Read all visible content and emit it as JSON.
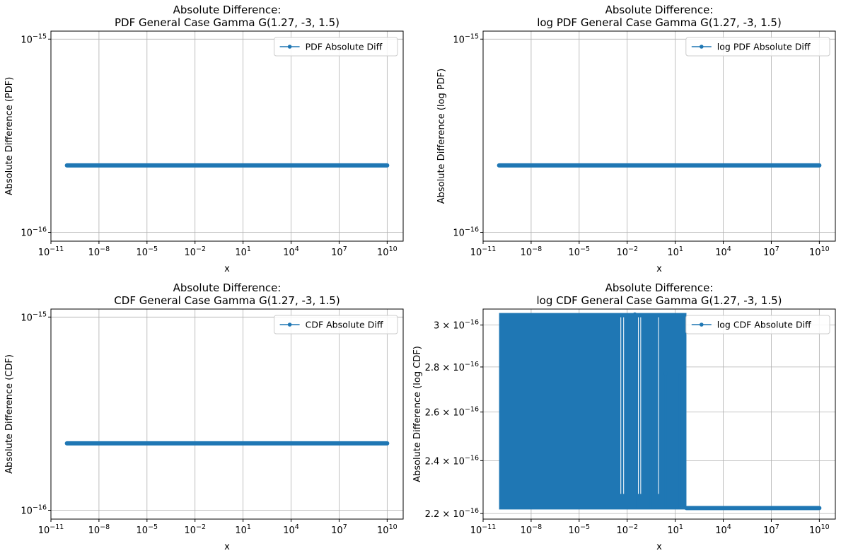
{
  "chart_data": [
    {
      "type": "line",
      "title_line1": "Absolute Difference:",
      "title_line2": "PDF General Case Gamma G(1.27, -3, 1.5)",
      "xlabel": "x",
      "ylabel": "Absolute Difference (PDF)",
      "x_scale": "log",
      "y_scale": "log",
      "xlim": [
        1e-11,
        100000000000.0
      ],
      "ylim": [
        9e-17,
        1.1e-15
      ],
      "x_ticks": [
        {
          "base": "10",
          "exp": "−11",
          "value": 1e-11
        },
        {
          "base": "10",
          "exp": "−8",
          "value": 1e-08
        },
        {
          "base": "10",
          "exp": "−5",
          "value": 1e-05
        },
        {
          "base": "10",
          "exp": "−2",
          "value": 0.01
        },
        {
          "base": "10",
          "exp": "1",
          "value": 10.0
        },
        {
          "base": "10",
          "exp": "4",
          "value": 10000.0
        },
        {
          "base": "10",
          "exp": "7",
          "value": 10000000.0
        },
        {
          "base": "10",
          "exp": "10",
          "value": 10000000000.0
        }
      ],
      "y_ticks": [
        {
          "base": "10",
          "exp": "−15",
          "value": 1e-15
        },
        {
          "base": "10",
          "exp": "−16",
          "value": 1e-16
        }
      ],
      "grid": true,
      "legend_position": "upper right",
      "series": [
        {
          "name": "PDF Absolute Diff",
          "color": "#1f77b4",
          "marker": "dot",
          "x_range": [
            1e-10,
            10000000000.0
          ],
          "constant_y": 2.22e-16
        }
      ]
    },
    {
      "type": "line",
      "title_line1": "Absolute Difference:",
      "title_line2": "log PDF General Case Gamma G(1.27, -3, 1.5)",
      "xlabel": "x",
      "ylabel": "Absolute Difference (log PDF)",
      "x_scale": "log",
      "y_scale": "log",
      "xlim": [
        1e-11,
        100000000000.0
      ],
      "ylim": [
        9e-17,
        1.1e-15
      ],
      "x_ticks": [
        {
          "base": "10",
          "exp": "−11",
          "value": 1e-11
        },
        {
          "base": "10",
          "exp": "−8",
          "value": 1e-08
        },
        {
          "base": "10",
          "exp": "−5",
          "value": 1e-05
        },
        {
          "base": "10",
          "exp": "−2",
          "value": 0.01
        },
        {
          "base": "10",
          "exp": "1",
          "value": 10.0
        },
        {
          "base": "10",
          "exp": "4",
          "value": 10000.0
        },
        {
          "base": "10",
          "exp": "7",
          "value": 10000000.0
        },
        {
          "base": "10",
          "exp": "10",
          "value": 10000000000.0
        }
      ],
      "y_ticks": [
        {
          "base": "10",
          "exp": "−15",
          "value": 1e-15
        },
        {
          "base": "10",
          "exp": "−16",
          "value": 1e-16
        }
      ],
      "grid": true,
      "legend_position": "upper right",
      "series": [
        {
          "name": "log PDF Absolute Diff",
          "color": "#1f77b4",
          "marker": "dot",
          "x_range": [
            1e-10,
            10000000000.0
          ],
          "constant_y": 2.22e-16
        }
      ]
    },
    {
      "type": "line",
      "title_line1": "Absolute Difference:",
      "title_line2": "CDF General Case Gamma G(1.27, -3, 1.5)",
      "xlabel": "x",
      "ylabel": "Absolute Difference (CDF)",
      "x_scale": "log",
      "y_scale": "log",
      "xlim": [
        1e-11,
        100000000000.0
      ],
      "ylim": [
        9e-17,
        1.1e-15
      ],
      "x_ticks": [
        {
          "base": "10",
          "exp": "−11",
          "value": 1e-11
        },
        {
          "base": "10",
          "exp": "−8",
          "value": 1e-08
        },
        {
          "base": "10",
          "exp": "−5",
          "value": 1e-05
        },
        {
          "base": "10",
          "exp": "−2",
          "value": 0.01
        },
        {
          "base": "10",
          "exp": "1",
          "value": 10.0
        },
        {
          "base": "10",
          "exp": "4",
          "value": 10000.0
        },
        {
          "base": "10",
          "exp": "7",
          "value": 10000000.0
        },
        {
          "base": "10",
          "exp": "10",
          "value": 10000000000.0
        }
      ],
      "y_ticks": [
        {
          "base": "10",
          "exp": "−15",
          "value": 1e-15
        },
        {
          "base": "10",
          "exp": "−16",
          "value": 1e-16
        }
      ],
      "grid": true,
      "legend_position": "upper right",
      "series": [
        {
          "name": "CDF Absolute Diff",
          "color": "#1f77b4",
          "marker": "dot",
          "x_range": [
            1e-10,
            10000000000.0
          ],
          "constant_y": 2.22e-16
        }
      ]
    },
    {
      "type": "line",
      "title_line1": "Absolute Difference:",
      "title_line2": "log CDF General Case Gamma G(1.27, -3, 1.5)",
      "xlabel": "x",
      "ylabel": "Absolute Difference (log CDF)",
      "x_scale": "log",
      "y_scale": "log",
      "xlim": [
        1e-11,
        100000000000.0
      ],
      "ylim": [
        2.18e-16,
        3.08e-16
      ],
      "x_ticks": [
        {
          "base": "10",
          "exp": "−11",
          "value": 1e-11
        },
        {
          "base": "10",
          "exp": "−8",
          "value": 1e-08
        },
        {
          "base": "10",
          "exp": "−5",
          "value": 1e-05
        },
        {
          "base": "10",
          "exp": "−2",
          "value": 0.01
        },
        {
          "base": "10",
          "exp": "1",
          "value": 10.0
        },
        {
          "base": "10",
          "exp": "4",
          "value": 10000.0
        },
        {
          "base": "10",
          "exp": "7",
          "value": 10000000.0
        },
        {
          "base": "10",
          "exp": "10",
          "value": 10000000000.0
        }
      ],
      "y_ticks": [
        {
          "base": "2.2 × 10",
          "exp": "−16",
          "value": 2.2e-16
        },
        {
          "base": "2.4 × 10",
          "exp": "−16",
          "value": 2.4e-16
        },
        {
          "base": "2.6 × 10",
          "exp": "−16",
          "value": 2.6e-16
        },
        {
          "base": "2.8 × 10",
          "exp": "−16",
          "value": 2.8e-16
        },
        {
          "base": "3 × 10",
          "exp": "−16",
          "value": 3e-16
        }
      ],
      "grid": true,
      "legend_position": "upper right",
      "series": [
        {
          "name": "log CDF Absolute Diff",
          "color": "#1f77b4",
          "marker": "dot",
          "x_range": [
            1e-10,
            10000000000.0
          ],
          "noisy_region": {
            "x_end": 50,
            "y_values": [
              2.22e-16,
              2.498e-16,
              2.776e-16,
              3.053e-16
            ]
          },
          "constant_y_after": 2.22e-16,
          "spikes": [
            {
              "x": 0.03,
              "y": 3.053e-16
            },
            {
              "x": 0.3,
              "y": 2.91e-16
            },
            {
              "x": 2.5,
              "y": 2.77e-16
            },
            {
              "x": 20,
              "y": 2.776e-16
            },
            {
              "x": 35,
              "y": 2.75e-16
            }
          ]
        }
      ]
    }
  ]
}
